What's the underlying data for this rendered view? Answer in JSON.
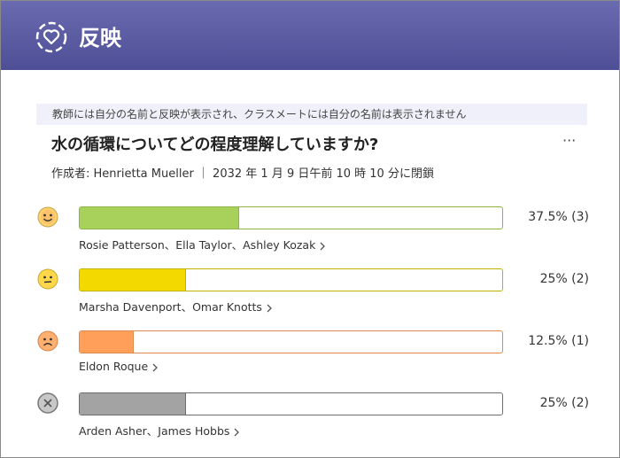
{
  "header": {
    "title": "反映"
  },
  "notice": "教師には自分の名前と反映が表示され、クラスメートには自分の名前は表示されません",
  "question": "水の循環についてどの程度理解していますか?",
  "more": "···",
  "meta": "作成者: Henrietta Mueller ｜ 2032 年 1 月 9 日午前 10 時 10 分に閉鎖",
  "scale_max": 100,
  "rows": [
    {
      "percent": 37.5,
      "label": "37.5% (3)",
      "names": "Rosie Patterson、Ella Taylor、Ashley Kozak",
      "color": "#a8d15c",
      "border": "#8db544",
      "face": "happy"
    },
    {
      "percent": 25,
      "label": "25% (2)",
      "names": "Marsha Davenport、Omar Knotts",
      "color": "#f3d900",
      "border": "#c3b000",
      "face": "neutral"
    },
    {
      "percent": 12.5,
      "label": "12.5% (1)",
      "names": "Eldon Roque",
      "color": "#ff9f5a",
      "border": "#de8a4c",
      "face": "sad"
    },
    {
      "percent": 25,
      "label": "25% (2)",
      "names": "Arden Asher、James Hobbs",
      "color": "#a3a3a3",
      "border": "#6e6e6e",
      "face": "none"
    }
  ]
}
